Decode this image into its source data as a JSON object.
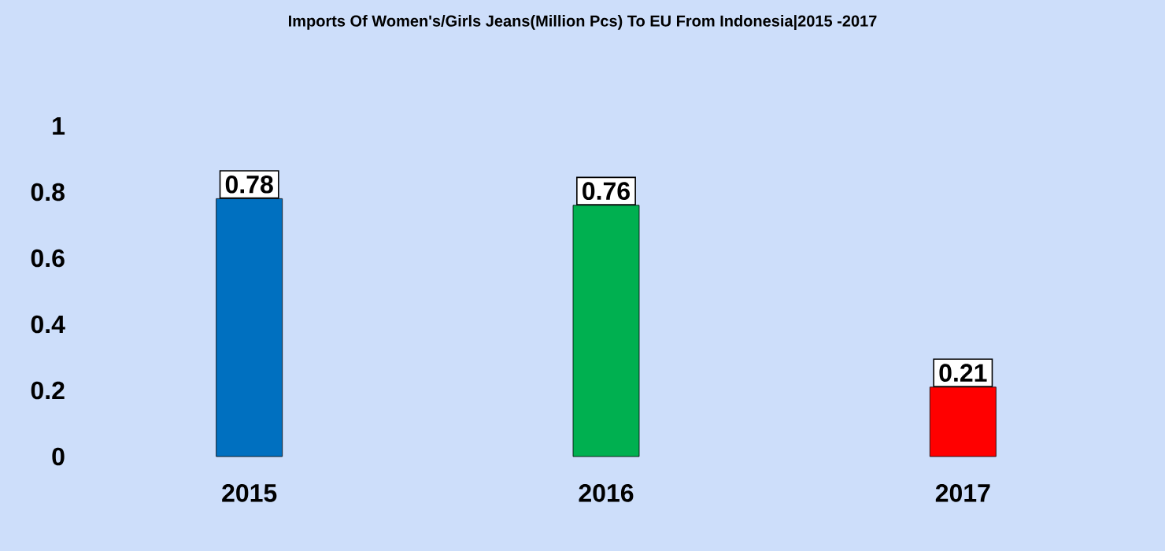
{
  "chart_data": {
    "type": "bar",
    "title": "Imports Of Women's/Girls Jeans(Million Pcs) To EU From Indonesia|2015 -2017",
    "categories": [
      "2015",
      "2016",
      "2017"
    ],
    "values": [
      0.78,
      0.76,
      0.21
    ],
    "colors": [
      "#0070c0",
      "#00b050",
      "#ff0000"
    ],
    "ylim": [
      0,
      1
    ],
    "yticks": [
      0,
      0.2,
      0.4,
      0.6,
      0.8,
      1
    ],
    "data_labels": true
  }
}
